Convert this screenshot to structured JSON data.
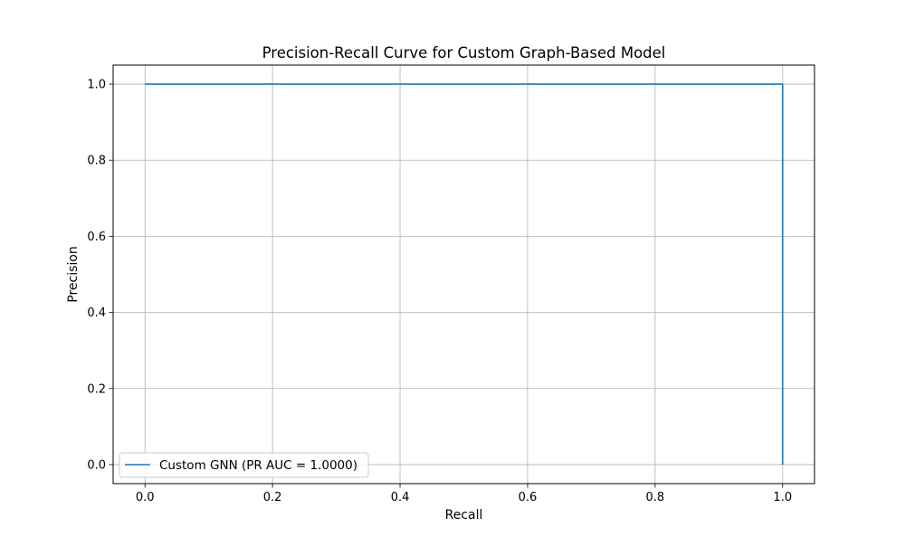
{
  "chart_data": {
    "type": "line",
    "title": "Precision-Recall Curve for Custom Graph-Based Model",
    "xlabel": "Recall",
    "ylabel": "Precision",
    "xlim": [
      -0.05,
      1.05
    ],
    "ylim": [
      -0.05,
      1.05
    ],
    "xticks": [
      0.0,
      0.2,
      0.4,
      0.6,
      0.8,
      1.0
    ],
    "yticks": [
      0.0,
      0.2,
      0.4,
      0.6,
      0.8,
      1.0
    ],
    "xtick_labels": [
      "0.0",
      "0.2",
      "0.4",
      "0.6",
      "0.8",
      "1.0"
    ],
    "ytick_labels": [
      "0.0",
      "0.2",
      "0.4",
      "0.6",
      "0.8",
      "1.0"
    ],
    "grid": true,
    "legend_position": "lower-left",
    "series": [
      {
        "name": "Custom GNN (PR AUC = 1.0000)",
        "color": "#1f77b4",
        "x": [
          0.0,
          1.0,
          1.0
        ],
        "y": [
          1.0,
          1.0,
          0.0
        ]
      }
    ]
  }
}
